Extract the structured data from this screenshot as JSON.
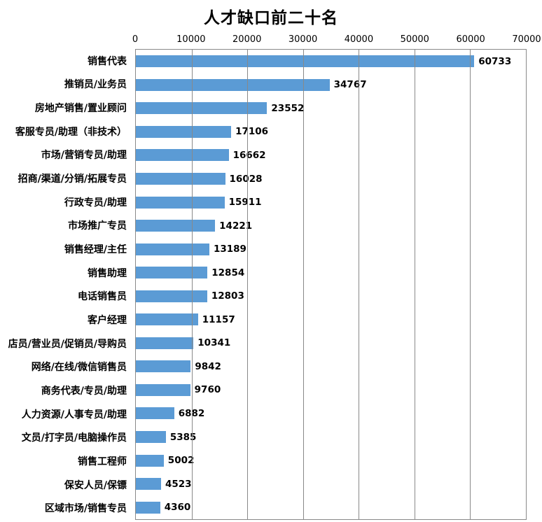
{
  "title": "人才缺口前二十名",
  "colors": {
    "bar": "#5B9BD5",
    "gridline": "#898989",
    "text": "#000000"
  },
  "chart_data": {
    "type": "bar",
    "orientation": "horizontal",
    "title": "人才缺口前二十名",
    "xlabel": "",
    "ylabel": "",
    "xlim": [
      0,
      70000
    ],
    "x_ticks": [
      0,
      10000,
      20000,
      30000,
      40000,
      50000,
      60000,
      70000
    ],
    "grid": "vertical",
    "value_labels": true,
    "legend": "none",
    "categories": [
      "销售代表",
      "推销员/业务员",
      "房地产销售/置业顾问",
      "客服专员/助理（非技术）",
      "市场/营销专员/助理",
      "招商/渠道/分销/拓展专员",
      "行政专员/助理",
      "市场推广专员",
      "销售经理/主任",
      "销售助理",
      "电话销售员",
      "客户经理",
      "店员/营业员/促销员/导购员",
      "网络/在线/微信销售员",
      "商务代表/专员/助理",
      "人力资源/人事专员/助理",
      "文员/打字员/电脑操作员",
      "销售工程师",
      "保安人员/保镖",
      "区域市场/销售专员"
    ],
    "values": [
      60733,
      34767,
      23552,
      17106,
      16662,
      16028,
      15911,
      14221,
      13189,
      12854,
      12803,
      11157,
      10341,
      9842,
      9760,
      6882,
      5385,
      5002,
      4523,
      4360
    ]
  }
}
